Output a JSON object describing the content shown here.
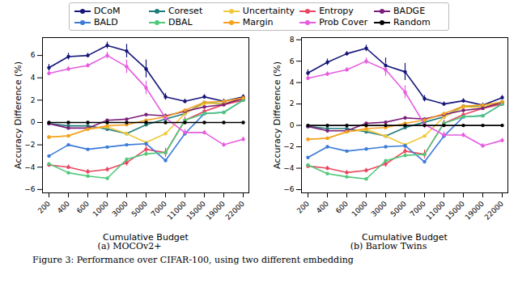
{
  "caption": "Figure 3: Performance over CIFAR-100, using two different embedding",
  "chart_data": [
    {
      "type": "line",
      "caption": "(a) MOCOv2+",
      "x_label": "Cumulative Budget",
      "y_label": "Accuracy Difference (%)",
      "categories": [
        "200",
        "400",
        "600",
        "1000",
        "3000",
        "5000",
        "7000",
        "11000",
        "15000",
        "19000",
        "22000"
      ],
      "ylim": [
        -6.3,
        7.6
      ],
      "yticks": [
        -6,
        -4,
        -2,
        0,
        2,
        4,
        6
      ],
      "grid": false,
      "marker": "circle",
      "series": [
        {
          "name": "DCoM",
          "color": "#16167a",
          "values": [
            4.9,
            5.9,
            6.0,
            6.9,
            6.4,
            4.8,
            2.3,
            1.9,
            2.3,
            1.9,
            2.3
          ],
          "errors": [
            0.3,
            0.3,
            0.2,
            0.3,
            0.6,
            0.8,
            0.3,
            0.2,
            0.2,
            0.2,
            0.2
          ]
        },
        {
          "name": "Coreset",
          "color": "#1f7a7a",
          "values": [
            -0.1,
            -0.3,
            -0.3,
            -0.6,
            -1.0,
            -0.2,
            0.3,
            0.8,
            1.8,
            1.7,
            2.1
          ]
        },
        {
          "name": "Uncertainty",
          "color": "#f0c93a",
          "values": [
            -1.3,
            -1.2,
            -0.6,
            -0.4,
            -1.0,
            -1.8,
            -1.0,
            0.8,
            1.7,
            1.7,
            2.2
          ]
        },
        {
          "name": "Entropy",
          "color": "#e8475f",
          "values": [
            -3.8,
            -4.0,
            -4.4,
            -4.2,
            -3.6,
            -2.4,
            -2.7,
            0.2,
            1.0,
            1.6,
            2.0
          ],
          "errors": [
            0.2,
            0.2,
            0.2,
            0.2,
            0.3,
            0.6,
            0.4,
            0.3,
            0.2,
            0.2,
            0.2
          ]
        },
        {
          "name": "BADGE",
          "color": "#7a1f7a",
          "values": [
            -0.1,
            -0.5,
            -0.5,
            0.2,
            0.3,
            0.7,
            0.6,
            1.0,
            1.4,
            1.6,
            2.2
          ]
        },
        {
          "name": "BALD",
          "color": "#3b7bd8",
          "values": [
            -3.0,
            -2.0,
            -2.4,
            -2.2,
            -2.0,
            -1.9,
            -3.4,
            -1.0,
            0.8,
            0.9,
            2.0
          ]
        },
        {
          "name": "DBAL",
          "color": "#4ec97a",
          "values": [
            -3.7,
            -4.5,
            -4.8,
            -5.0,
            -3.3,
            -2.8,
            -2.7,
            0.2,
            0.8,
            0.9,
            2.0
          ]
        },
        {
          "name": "Margin",
          "color": "#f5a020",
          "values": [
            -1.3,
            -1.2,
            -0.6,
            -0.3,
            -0.2,
            0.2,
            0.5,
            1.1,
            1.8,
            1.9,
            2.2
          ]
        },
        {
          "name": "Prob Cover",
          "color": "#e65ce0",
          "values": [
            4.4,
            4.8,
            5.1,
            6.0,
            5.0,
            3.1,
            0.4,
            -0.9,
            -0.9,
            -2.0,
            -1.5
          ],
          "errors": [
            0.2,
            0.2,
            0.2,
            0.3,
            0.6,
            0.6,
            0.4,
            0.3,
            0.2,
            0.2,
            0.2
          ]
        },
        {
          "name": "Random",
          "color": "#000000",
          "values": [
            0,
            0,
            0,
            0,
            0,
            0,
            0,
            0,
            0,
            0,
            0
          ]
        }
      ]
    },
    {
      "type": "line",
      "caption": "(b) Barlow Twins",
      "x_label": "Cumulative Budget",
      "y_label": "Accuracy Difference (%)",
      "categories": [
        "200",
        "400",
        "600",
        "1000",
        "3000",
        "5000",
        "7000",
        "11000",
        "15000",
        "19000",
        "22000"
      ],
      "ylim": [
        -6.3,
        8.2
      ],
      "yticks": [
        -6,
        -4,
        -2,
        0,
        2,
        4,
        6,
        8
      ],
      "grid": false,
      "marker": "circle",
      "series": [
        {
          "name": "DCoM",
          "color": "#16167a",
          "values": [
            4.9,
            5.9,
            6.7,
            7.2,
            5.6,
            5.0,
            2.5,
            2.0,
            2.3,
            1.9,
            2.6
          ],
          "errors": [
            0.3,
            0.3,
            0.2,
            0.3,
            0.7,
            0.8,
            0.3,
            0.2,
            0.2,
            0.2,
            0.2
          ]
        },
        {
          "name": "Coreset",
          "color": "#1f7a7a",
          "values": [
            -0.1,
            -0.3,
            -0.3,
            -0.6,
            -1.0,
            -0.2,
            0.3,
            0.8,
            1.8,
            1.7,
            2.1
          ]
        },
        {
          "name": "Uncertainty",
          "color": "#f0c93a",
          "values": [
            -1.3,
            -1.2,
            -0.6,
            -0.4,
            -1.0,
            -1.8,
            -1.0,
            0.8,
            1.7,
            1.7,
            2.2
          ]
        },
        {
          "name": "Entropy",
          "color": "#e8475f",
          "values": [
            -3.8,
            -4.0,
            -4.4,
            -4.2,
            -3.6,
            -2.4,
            -2.7,
            0.2,
            1.0,
            1.6,
            2.0
          ],
          "errors": [
            0.2,
            0.2,
            0.2,
            0.2,
            0.3,
            0.6,
            0.4,
            0.3,
            0.2,
            0.2,
            0.2
          ]
        },
        {
          "name": "BADGE",
          "color": "#7a1f7a",
          "values": [
            -0.1,
            -0.5,
            -0.5,
            0.2,
            0.3,
            0.7,
            0.6,
            1.0,
            1.4,
            1.6,
            2.2
          ]
        },
        {
          "name": "BALD",
          "color": "#3b7bd8",
          "values": [
            -3.0,
            -2.0,
            -2.4,
            -2.2,
            -2.0,
            -1.9,
            -3.4,
            -1.0,
            0.8,
            0.9,
            2.0
          ]
        },
        {
          "name": "DBAL",
          "color": "#4ec97a",
          "values": [
            -3.7,
            -4.5,
            -4.8,
            -5.0,
            -3.3,
            -2.8,
            -2.7,
            0.2,
            0.8,
            0.9,
            2.0
          ]
        },
        {
          "name": "Margin",
          "color": "#f5a020",
          "values": [
            -1.3,
            -1.2,
            -0.6,
            -0.3,
            -0.2,
            0.2,
            0.5,
            1.1,
            1.8,
            1.9,
            2.2
          ]
        },
        {
          "name": "Prob Cover",
          "color": "#e65ce0",
          "values": [
            4.4,
            4.8,
            5.2,
            6.0,
            5.2,
            3.1,
            0.1,
            -0.9,
            -0.9,
            -1.9,
            -1.4
          ],
          "errors": [
            0.2,
            0.2,
            0.2,
            0.3,
            0.6,
            0.6,
            0.4,
            0.3,
            0.2,
            0.2,
            0.2
          ]
        },
        {
          "name": "Random",
          "color": "#000000",
          "values": [
            0,
            0,
            0,
            0,
            0,
            0,
            0,
            0,
            0,
            0,
            0
          ]
        }
      ]
    }
  ]
}
